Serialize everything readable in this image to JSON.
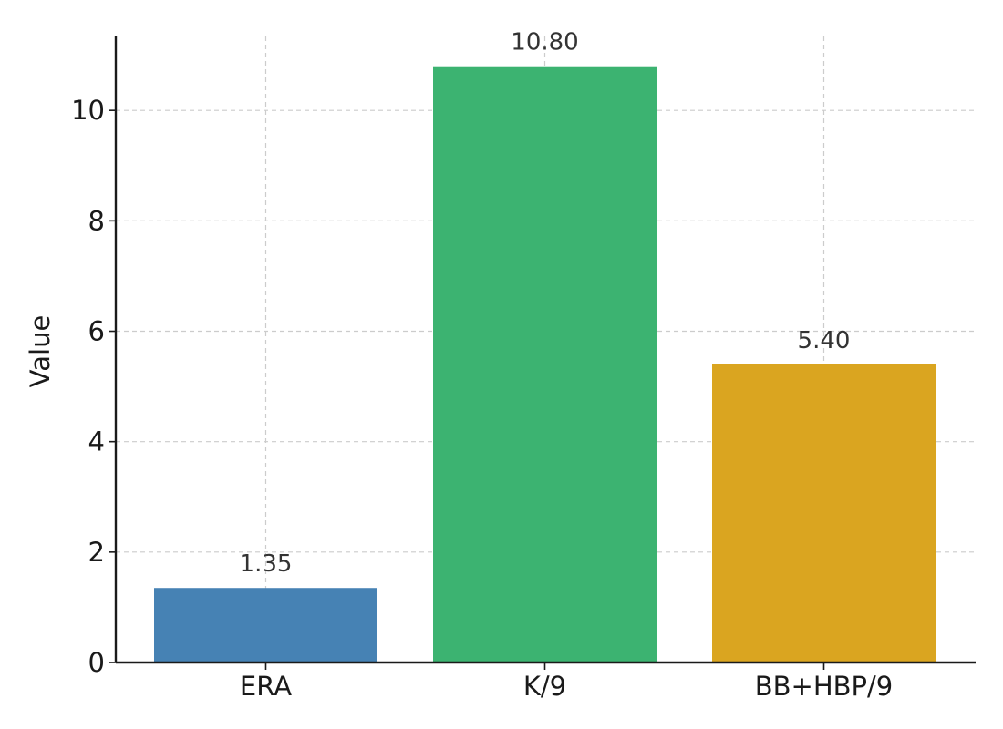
{
  "chart_data": {
    "type": "bar",
    "categories": [
      "ERA",
      "K/9",
      "BB+HBP/9"
    ],
    "values": [
      1.35,
      10.8,
      5.4
    ],
    "value_labels": [
      "1.35",
      "10.80",
      "5.40"
    ],
    "colors": [
      "#4682b4",
      "#3cb371",
      "#daa520"
    ],
    "title": "",
    "xlabel": "",
    "ylabel": "Value",
    "ylim": [
      0,
      11.34
    ],
    "yticks": [
      0,
      2,
      4,
      6,
      8,
      10
    ],
    "grid": true,
    "legend": "none"
  }
}
